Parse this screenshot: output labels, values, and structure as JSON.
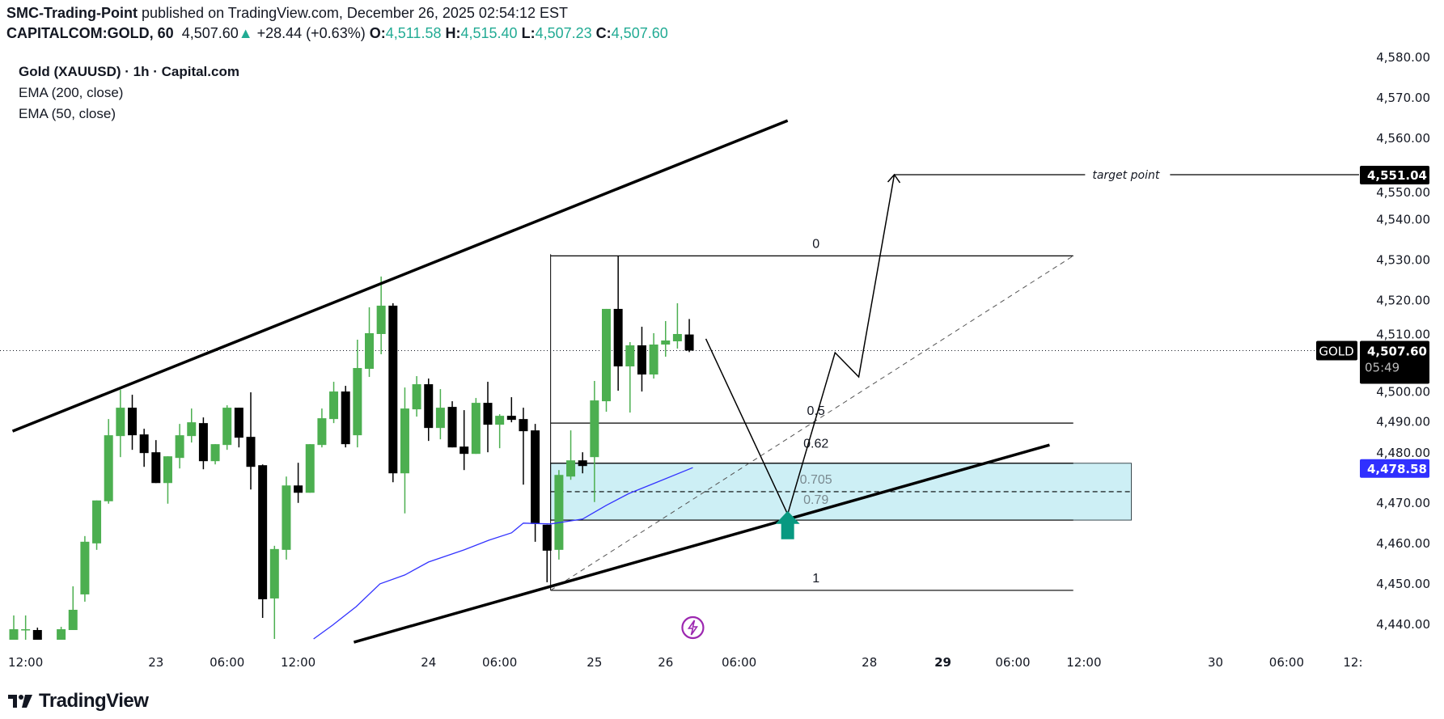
{
  "header": {
    "publisher": "SMC-Trading-Point",
    "published_text": "published on TradingView.com, December 26, 2025 02:54:12 EST",
    "symbol": "CAPITALCOM:GOLD, 60",
    "last": "4,507.60",
    "change": "+28.44 (+0.63%)",
    "o_label": "O:",
    "o": "4,511.58",
    "h_label": "H:",
    "h": "4,515.40",
    "l_label": "L:",
    "l": "4,507.23",
    "c_label": "C:",
    "c": "4,507.60"
  },
  "legend": {
    "title": "Gold (XAUUSD) · 1h · Capital.com",
    "ema200": "EMA (200, close)",
    "ema50": "EMA (50, close)"
  },
  "price_axis": {
    "ticks": [
      "4,580.00",
      "4,570.00",
      "4,560.00",
      "4,550.00",
      "4,540.00",
      "4,530.00",
      "4,520.00",
      "4,510.00",
      "4,500.00",
      "4,490.00",
      "4,480.00",
      "4,470.00",
      "4,460.00",
      "4,450.00",
      "4,440.00"
    ],
    "current_symbol": "GOLD",
    "current_price": "4,507.60",
    "countdown": "05:49",
    "ema_value": "4,478.58",
    "target_value": "4,551.04"
  },
  "time_axis": [
    {
      "label": "12:00",
      "bar": 1,
      "bold": false
    },
    {
      "label": "23",
      "bar": 12,
      "bold": false
    },
    {
      "label": "06:00",
      "bar": 18,
      "bold": false
    },
    {
      "label": "12:00",
      "bar": 24,
      "bold": false
    },
    {
      "label": "24",
      "bar": 35,
      "bold": false
    },
    {
      "label": "06:00",
      "bar": 41,
      "bold": false
    },
    {
      "label": "25",
      "bar": 49,
      "bold": false
    },
    {
      "label": "26",
      "bar": 55,
      "bold": false
    },
    {
      "label": "06:00",
      "bar": 61.2,
      "bold": false
    },
    {
      "label": "28",
      "bar": 72.2,
      "bold": false
    },
    {
      "label": "29",
      "bar": 78.4,
      "bold": true
    },
    {
      "label": "06:00",
      "bar": 84.3,
      "bold": false
    },
    {
      "label": "12:00",
      "bar": 90.3,
      "bold": false
    },
    {
      "label": "30",
      "bar": 101.4,
      "bold": false
    },
    {
      "label": "06:00",
      "bar": 107.4,
      "bold": false
    },
    {
      "label": "12:",
      "bar": 113,
      "bold": false
    }
  ],
  "chart_data": {
    "type": "candlestick",
    "ylim": [
      4435,
      4582
    ],
    "colors": {
      "up": "#4caf50",
      "down": "#000000",
      "ema": "#3333ff",
      "ema_label": "#3030ff",
      "arrow": "#089981",
      "zone": "#cdeff5",
      "event": "#9c27b0",
      "teal": "#22ab94"
    },
    "candles": [
      [
        4436.2,
        4442.2,
        4436.2,
        4438.8
      ],
      [
        4438.8,
        4442.2,
        4436.2,
        4438.8
      ],
      [
        4438.6,
        4439.2,
        4436.2,
        4436.2
      ],
      null,
      [
        4436.2,
        4439.4,
        4436.2,
        4438.8
      ],
      [
        4438.6,
        4449.4,
        4438.6,
        4443.6
      ],
      [
        4447.4,
        4461.8,
        4445.6,
        4460.4
      ],
      [
        4460.0,
        4470.6,
        4458.4,
        4470.6
      ],
      [
        4470.4,
        4490.7,
        4469.8,
        4486.7
      ],
      [
        4486.5,
        4497.9,
        4481.3,
        4493.5
      ],
      [
        4493.5,
        4496.7,
        4483.1,
        4486.7
      ],
      [
        4486.9,
        4488.3,
        4478.9,
        4482.3
      ],
      [
        4482.5,
        4485.5,
        4474.9,
        4474.9
      ],
      [
        4474.9,
        4481.5,
        4469.8,
        4481.5
      ],
      [
        4481.1,
        4489.5,
        4478.5,
        4486.7
      ],
      [
        4486.5,
        4493.3,
        4484.9,
        4489.9
      ],
      [
        4489.7,
        4491.1,
        4478.3,
        4480.3
      ],
      [
        4480.3,
        4484.5,
        4479.5,
        4484.5
      ],
      [
        4484.3,
        4494.1,
        4483.1,
        4493.5
      ],
      [
        4493.5,
        4493.5,
        4483.7,
        4486.1
      ],
      [
        4486.3,
        4497.3,
        4473.3,
        4478.9
      ],
      [
        4479.3,
        4479.5,
        4441.6,
        4446.2
      ],
      [
        4446.4,
        4459.4,
        4436.4,
        4458.6
      ],
      [
        4458.4,
        4476.5,
        4456.0,
        4474.3
      ],
      [
        4474.3,
        4479.9,
        4470.0,
        4472.5
      ],
      [
        4472.5,
        4484.5,
        4472.5,
        4484.5
      ],
      [
        4484.3,
        4493.3,
        4483.7,
        4490.9
      ],
      [
        4490.7,
        4499.9,
        4489.7,
        4497.5
      ],
      [
        4497.5,
        4498.9,
        4483.7,
        4484.5
      ],
      [
        4486.7,
        4510.3,
        4483.7,
        4503.3
      ],
      [
        4503.1,
        4518.3,
        4501.1,
        4511.9
      ],
      [
        4511.7,
        4525.9,
        4506.7,
        4518.7
      ],
      [
        4518.7,
        4519.3,
        4475.1,
        4477.3
      ],
      [
        4477.3,
        4498.5,
        4467.4,
        4493.3
      ],
      [
        4493.1,
        4501.3,
        4491.3,
        4499.3
      ],
      [
        4499.3,
        4500.7,
        4485.3,
        4488.5
      ],
      [
        4488.5,
        4498.1,
        4485.7,
        4493.5
      ],
      [
        4493.7,
        4495.1,
        4483.7,
        4483.7
      ],
      [
        4483.9,
        4492.9,
        4478.1,
        4482.1
      ],
      [
        4482.1,
        4495.9,
        4482.1,
        4494.7
      ],
      [
        4494.7,
        4499.9,
        4482.5,
        4489.3
      ],
      [
        4489.3,
        4491.9,
        4483.5,
        4491.5
      ],
      [
        4491.5,
        4496.1,
        4489.9,
        4490.5
      ],
      [
        4490.7,
        4493.5,
        4474.5,
        4487.7
      ],
      [
        4487.9,
        4489.5,
        4460.4,
        4464.8
      ],
      [
        4464.6,
        4464.6,
        4450.4,
        4458.2
      ],
      [
        4458.4,
        4478.1,
        4456.0,
        4476.9
      ],
      [
        4476.5,
        4487.9,
        4475.7,
        4480.5
      ],
      [
        4480.5,
        4482.5,
        4477.3,
        4479.1
      ],
      [
        4481.3,
        4500.1,
        4470.2,
        4495.3
      ],
      [
        4495.1,
        4517.9,
        4492.5,
        4517.9
      ],
      [
        4517.9,
        4531.0,
        4497.7,
        4503.7
      ],
      [
        4503.7,
        4509.7,
        4492.3,
        4508.9
      ],
      [
        4508.9,
        4513.5,
        4497.5,
        4501.7
      ],
      [
        4501.7,
        4511.9,
        4500.7,
        4509.1
      ],
      [
        4509.1,
        4514.9,
        4506.1,
        4510.1
      ],
      [
        4509.9,
        4519.3,
        4508.1,
        4511.7
      ],
      [
        4511.58,
        4515.4,
        4507.23,
        4507.6
      ]
    ],
    "ema50": [
      [
        25.3,
        4436.4
      ],
      [
        26.9,
        4439.8
      ],
      [
        28.9,
        4444.4
      ],
      [
        30.9,
        4450.0
      ],
      [
        33.0,
        4452.2
      ],
      [
        35.0,
        4455.4
      ],
      [
        38.0,
        4458.4
      ],
      [
        40.1,
        4460.8
      ],
      [
        42.0,
        4462.6
      ],
      [
        43.0,
        4465.0
      ],
      [
        45.3,
        4464.8
      ],
      [
        48.0,
        4466.0
      ],
      [
        50.0,
        4469.4
      ],
      [
        51.9,
        4472.3
      ],
      [
        54.1,
        4474.9
      ],
      [
        57.3,
        4478.7
      ]
    ],
    "current_price": 4507.6,
    "ema_value": 4478.58,
    "channel_upper": [
      [
        -0.1,
        4487.7
      ],
      [
        65.3,
        4564.4
      ]
    ],
    "channel_lower": [
      [
        28.7,
        4435.6
      ],
      [
        87.4,
        4484.3
      ]
    ],
    "fib": {
      "start_bar": 45.3,
      "end_bar": 89.4,
      "price_0": 4531.0,
      "price_1": 4448.4,
      "levels": [
        {
          "level": 0,
          "label": "0"
        },
        {
          "level": 0.5,
          "label": "0.5"
        },
        {
          "level": 0.62,
          "label": "0.62"
        },
        {
          "level": 0.705,
          "label": "0.705"
        },
        {
          "level": 0.79,
          "label": "0.79"
        },
        {
          "level": 1,
          "label": "1"
        }
      ],
      "zone_end_bar": 94.3
    },
    "projection_path": [
      [
        58.4,
        4510.5
      ],
      [
        65.3,
        4467.2
      ],
      [
        69.3,
        4507.1
      ],
      [
        71.3,
        4501.1
      ],
      [
        74.3,
        4551.04
      ]
    ],
    "target": {
      "price": 4551.04,
      "label": "target point",
      "end_bar": 90.4
    },
    "buy_arrow": {
      "bar": 65.3,
      "price": 4466.4
    },
    "event_marker": {
      "bar": 57.3,
      "icon": "lightning-icon"
    }
  },
  "branding": {
    "logo_text": "TradingView"
  }
}
